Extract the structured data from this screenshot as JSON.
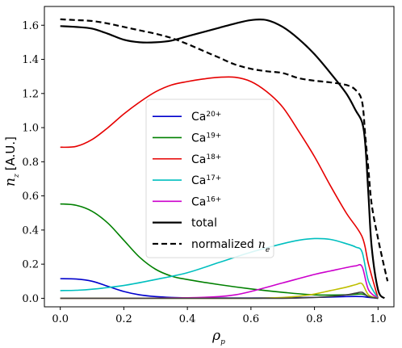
{
  "chart_data": {
    "type": "line",
    "ylabel_main": "n",
    "ylabel_sub": "z",
    "ylabel_unit": "[A.U.]",
    "xlabel_main": "ρ",
    "xlabel_sub": "p",
    "xlim": [
      -0.05,
      1.05
    ],
    "ylim": [
      -0.05,
      1.71
    ],
    "xticks": [
      "0.0",
      "0.2",
      "0.4",
      "0.6",
      "0.8",
      "1.0"
    ],
    "xtick_values": [
      0.0,
      0.2,
      0.4,
      0.6,
      0.8,
      1.0
    ],
    "yticks": [
      "0.0",
      "0.2",
      "0.4",
      "0.6",
      "0.8",
      "1.0",
      "1.2",
      "1.4",
      "1.6"
    ],
    "ytick_values": [
      0.0,
      0.2,
      0.4,
      0.6,
      0.8,
      1.0,
      1.2,
      1.4,
      1.6
    ],
    "legend_position": "center",
    "series": [
      {
        "name": "Ca",
        "charge": "20+",
        "color": "#0000cc",
        "dash": "solid",
        "x": [
          0.0,
          0.05,
          0.1,
          0.15,
          0.2,
          0.25,
          0.3,
          0.35,
          0.4,
          0.5,
          0.6,
          0.7,
          0.8,
          0.9,
          0.95,
          0.97,
          1.0
        ],
        "y": [
          0.115,
          0.113,
          0.1,
          0.07,
          0.04,
          0.02,
          0.01,
          0.005,
          0.003,
          0.002,
          0.002,
          0.003,
          0.005,
          0.01,
          0.01,
          0.005,
          0.0
        ]
      },
      {
        "name": "Ca",
        "charge": "19+",
        "color": "#008000",
        "dash": "solid",
        "x": [
          0.0,
          0.05,
          0.1,
          0.15,
          0.2,
          0.25,
          0.3,
          0.35,
          0.4,
          0.5,
          0.6,
          0.7,
          0.8,
          0.9,
          0.95,
          0.97,
          1.0
        ],
        "y": [
          0.553,
          0.545,
          0.51,
          0.44,
          0.34,
          0.24,
          0.17,
          0.13,
          0.11,
          0.08,
          0.055,
          0.035,
          0.02,
          0.02,
          0.025,
          0.01,
          0.0
        ]
      },
      {
        "name": "Ca",
        "charge": "18+",
        "color": "#e60000",
        "dash": "solid",
        "x": [
          0.0,
          0.05,
          0.1,
          0.15,
          0.2,
          0.25,
          0.3,
          0.35,
          0.4,
          0.45,
          0.5,
          0.55,
          0.6,
          0.65,
          0.7,
          0.75,
          0.8,
          0.85,
          0.9,
          0.95,
          0.97,
          1.0
        ],
        "y": [
          0.885,
          0.89,
          0.93,
          1.0,
          1.08,
          1.15,
          1.21,
          1.25,
          1.27,
          1.285,
          1.295,
          1.295,
          1.27,
          1.21,
          1.12,
          0.98,
          0.83,
          0.66,
          0.5,
          0.36,
          0.2,
          0.0
        ]
      },
      {
        "name": "Ca",
        "charge": "17+",
        "color": "#00bfbf",
        "dash": "solid",
        "x": [
          0.0,
          0.05,
          0.1,
          0.2,
          0.3,
          0.4,
          0.5,
          0.6,
          0.7,
          0.75,
          0.8,
          0.85,
          0.9,
          0.93,
          0.95,
          0.97,
          1.0
        ],
        "y": [
          0.045,
          0.047,
          0.053,
          0.075,
          0.11,
          0.15,
          0.21,
          0.27,
          0.32,
          0.34,
          0.35,
          0.345,
          0.32,
          0.3,
          0.27,
          0.1,
          0.0
        ]
      },
      {
        "name": "Ca",
        "charge": "16+",
        "color": "#cc00cc",
        "dash": "solid",
        "x": [
          0.0,
          0.2,
          0.4,
          0.5,
          0.55,
          0.6,
          0.7,
          0.8,
          0.85,
          0.9,
          0.93,
          0.95,
          0.97,
          1.0
        ],
        "y": [
          0.0,
          0.0,
          0.003,
          0.01,
          0.02,
          0.04,
          0.09,
          0.14,
          0.16,
          0.18,
          0.19,
          0.185,
          0.05,
          0.0
        ]
      },
      {
        "name": "",
        "charge": "",
        "color": "#bfbf00",
        "dash": "solid",
        "x": [
          0.0,
          0.4,
          0.6,
          0.65,
          0.7,
          0.75,
          0.8,
          0.85,
          0.9,
          0.93,
          0.95,
          0.97,
          1.0
        ],
        "y": [
          0.0,
          0.0,
          0.0,
          0.002,
          0.005,
          0.012,
          0.025,
          0.045,
          0.065,
          0.08,
          0.085,
          0.02,
          0.0
        ]
      },
      {
        "name": "",
        "charge": "",
        "color": "#404040",
        "dash": "solid",
        "x": [
          0.0,
          0.5,
          0.7,
          0.8,
          0.85,
          0.9,
          0.93,
          0.95,
          0.97,
          1.0
        ],
        "y": [
          0.0,
          0.0,
          0.0,
          0.005,
          0.01,
          0.02,
          0.03,
          0.035,
          0.01,
          0.0
        ]
      },
      {
        "name": "total",
        "charge": "",
        "color": "#000000",
        "dash": "solid",
        "x": [
          0.0,
          0.05,
          0.1,
          0.15,
          0.2,
          0.25,
          0.3,
          0.35,
          0.4,
          0.45,
          0.5,
          0.55,
          0.6,
          0.65,
          0.7,
          0.75,
          0.8,
          0.85,
          0.9,
          0.93,
          0.95,
          0.96,
          0.97,
          0.98,
          1.0,
          1.02
        ],
        "y": [
          1.595,
          1.59,
          1.58,
          1.55,
          1.515,
          1.5,
          1.5,
          1.51,
          1.535,
          1.56,
          1.585,
          1.61,
          1.63,
          1.63,
          1.59,
          1.52,
          1.43,
          1.32,
          1.2,
          1.1,
          1.03,
          0.9,
          0.6,
          0.3,
          0.05,
          0.0
        ]
      },
      {
        "name": "normalized",
        "charge": "",
        "math": "n",
        "math_sub": "e",
        "color": "#000000",
        "dash": "dashed",
        "x": [
          0.0,
          0.05,
          0.1,
          0.15,
          0.2,
          0.25,
          0.3,
          0.35,
          0.4,
          0.45,
          0.5,
          0.55,
          0.6,
          0.65,
          0.7,
          0.75,
          0.8,
          0.85,
          0.9,
          0.93,
          0.95,
          0.96,
          0.97,
          0.98,
          1.0,
          1.02,
          1.03
        ],
        "y": [
          1.635,
          1.63,
          1.625,
          1.61,
          1.59,
          1.57,
          1.55,
          1.525,
          1.49,
          1.45,
          1.41,
          1.37,
          1.345,
          1.33,
          1.32,
          1.29,
          1.275,
          1.265,
          1.25,
          1.22,
          1.15,
          0.95,
          0.75,
          0.55,
          0.35,
          0.18,
          0.1
        ]
      }
    ]
  }
}
